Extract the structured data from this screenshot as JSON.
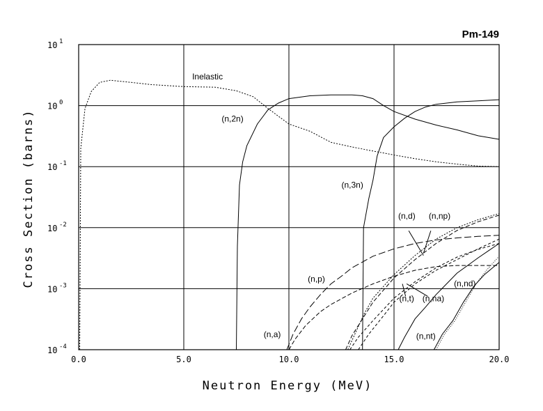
{
  "chart_data": {
    "type": "line",
    "title": "Pm-149",
    "xlabel": "Neutron Energy (MeV)",
    "ylabel": "Cross Section (barns)",
    "xlim": [
      0,
      20
    ],
    "ylim": [
      0.0001,
      10
    ],
    "yscale": "log",
    "grid": true,
    "x_ticks": [
      "0.0",
      "5.0",
      "10.0",
      "15.0",
      "20.0"
    ],
    "y_ticks": [
      {
        "base": "10",
        "exp": "-4",
        "value": 0.0001
      },
      {
        "base": "10",
        "exp": "-3",
        "value": 0.001
      },
      {
        "base": "10",
        "exp": "-2",
        "value": 0.01
      },
      {
        "base": "10",
        "exp": "-1",
        "value": 0.1
      },
      {
        "base": "10",
        "exp": "0",
        "value": 1
      },
      {
        "base": "10",
        "exp": "1",
        "value": 10
      }
    ],
    "series": [
      {
        "name": "Inelastic",
        "dash": "2,2",
        "label_at": [
          5.4,
          2.7
        ],
        "points": [
          [
            0.05,
            0.0001
          ],
          [
            0.1,
            0.2
          ],
          [
            0.3,
            0.9
          ],
          [
            0.6,
            1.7
          ],
          [
            1.0,
            2.4
          ],
          [
            1.5,
            2.6
          ],
          [
            2.5,
            2.4
          ],
          [
            3.5,
            2.2
          ],
          [
            5.0,
            2.05
          ],
          [
            6.5,
            2.0
          ],
          [
            7.5,
            1.75
          ],
          [
            8.3,
            1.4
          ],
          [
            9.0,
            0.9
          ],
          [
            10.0,
            0.5
          ],
          [
            11.0,
            0.38
          ],
          [
            12.0,
            0.25
          ],
          [
            13.0,
            0.21
          ],
          [
            14.0,
            0.18
          ],
          [
            15.0,
            0.155
          ],
          [
            16.0,
            0.135
          ],
          [
            17.0,
            0.12
          ],
          [
            18.0,
            0.11
          ],
          [
            19.0,
            0.102
          ],
          [
            20.0,
            0.1
          ]
        ]
      },
      {
        "name": "(n,2n)",
        "dash": "",
        "label_at": [
          6.8,
          0.55
        ],
        "points": [
          [
            7.5,
            0.0001
          ],
          [
            7.55,
            0.005
          ],
          [
            7.65,
            0.05
          ],
          [
            7.8,
            0.12
          ],
          [
            8.0,
            0.22
          ],
          [
            8.5,
            0.5
          ],
          [
            9.0,
            0.85
          ],
          [
            9.5,
            1.1
          ],
          [
            10.0,
            1.3
          ],
          [
            11.0,
            1.45
          ],
          [
            12.0,
            1.5
          ],
          [
            13.0,
            1.5
          ],
          [
            13.5,
            1.45
          ],
          [
            14.0,
            1.3
          ],
          [
            14.5,
            1.0
          ],
          [
            15.0,
            0.8
          ],
          [
            16.0,
            0.6
          ],
          [
            17.0,
            0.48
          ],
          [
            18.0,
            0.4
          ],
          [
            19.0,
            0.32
          ],
          [
            20.0,
            0.28
          ]
        ]
      },
      {
        "name": "(n,3n)",
        "dash": "",
        "label_at": [
          12.5,
          0.045
        ],
        "points": [
          [
            13.5,
            0.0001
          ],
          [
            13.55,
            0.01
          ],
          [
            13.8,
            0.03
          ],
          [
            14.0,
            0.06
          ],
          [
            14.2,
            0.15
          ],
          [
            14.5,
            0.3
          ],
          [
            15.0,
            0.45
          ],
          [
            15.5,
            0.62
          ],
          [
            16.0,
            0.8
          ],
          [
            16.5,
            0.95
          ],
          [
            17.0,
            1.05
          ],
          [
            18.0,
            1.15
          ],
          [
            19.0,
            1.2
          ],
          [
            20.0,
            1.25
          ]
        ]
      },
      {
        "name": "(n,p)",
        "dash": "10,4",
        "label_at": [
          10.9,
          0.0013
        ],
        "points": [
          [
            9.9,
            0.0001
          ],
          [
            10.2,
            0.00018
          ],
          [
            10.6,
            0.00032
          ],
          [
            11.0,
            0.0005
          ],
          [
            11.5,
            0.0008
          ],
          [
            12.0,
            0.0012
          ],
          [
            12.5,
            0.0016
          ],
          [
            13.0,
            0.0022
          ],
          [
            14.0,
            0.0034
          ],
          [
            15.0,
            0.0045
          ],
          [
            16.0,
            0.0055
          ],
          [
            17.0,
            0.0063
          ],
          [
            18.0,
            0.0068
          ],
          [
            19.0,
            0.0072
          ],
          [
            20.0,
            0.0075
          ]
        ]
      },
      {
        "name": "(n,a)",
        "dash": "6,3",
        "label_at": [
          8.8,
          0.00016
        ],
        "points": [
          [
            10.0,
            0.0001
          ],
          [
            10.3,
            0.00015
          ],
          [
            10.8,
            0.00025
          ],
          [
            11.5,
            0.00042
          ],
          [
            12.0,
            0.00055
          ],
          [
            13.0,
            0.00085
          ],
          [
            14.0,
            0.0012
          ],
          [
            15.0,
            0.0016
          ],
          [
            16.0,
            0.002
          ],
          [
            17.0,
            0.0023
          ],
          [
            18.0,
            0.0024
          ],
          [
            19.0,
            0.0024
          ],
          [
            20.0,
            0.0024
          ]
        ]
      },
      {
        "name": "(n,d)",
        "dash": "6,3",
        "label_at": [
          15.2,
          0.014
        ],
        "points": [
          [
            12.7,
            0.0001
          ],
          [
            13.0,
            0.00017
          ],
          [
            13.5,
            0.00032
          ],
          [
            14.0,
            0.0006
          ],
          [
            15.0,
            0.0015
          ],
          [
            16.0,
            0.003
          ],
          [
            17.0,
            0.0055
          ],
          [
            18.0,
            0.009
          ],
          [
            19.0,
            0.0125
          ],
          [
            20.0,
            0.016
          ]
        ]
      },
      {
        "name": "(n,np)",
        "dash": "2,2",
        "label_at": [
          16.65,
          0.014
        ],
        "points": [
          [
            12.8,
            0.0001
          ],
          [
            13.2,
            0.0002
          ],
          [
            13.6,
            0.0004
          ],
          [
            14.0,
            0.0007
          ],
          [
            15.0,
            0.0017
          ],
          [
            16.0,
            0.0035
          ],
          [
            17.0,
            0.0065
          ],
          [
            18.0,
            0.01
          ],
          [
            19.0,
            0.0135
          ],
          [
            20.0,
            0.017
          ]
        ]
      },
      {
        "name": "(n,t)",
        "dash": "4,3",
        "label_at": [
          15.25,
          0.00062
        ],
        "points": [
          [
            12.9,
            0.0001
          ],
          [
            13.3,
            0.00016
          ],
          [
            14.0,
            0.0003
          ],
          [
            15.0,
            0.0007
          ],
          [
            16.0,
            0.0013
          ],
          [
            17.0,
            0.0022
          ],
          [
            18.0,
            0.0033
          ],
          [
            19.0,
            0.0044
          ],
          [
            20.0,
            0.0055
          ]
        ]
      },
      {
        "name": "(n,na)",
        "dash": "4,3",
        "label_at": [
          16.35,
          0.00062
        ],
        "points": [
          [
            13.3,
            0.0001
          ],
          [
            13.8,
            0.00018
          ],
          [
            14.5,
            0.00036
          ],
          [
            15.0,
            0.0006
          ],
          [
            16.0,
            0.0012
          ],
          [
            17.0,
            0.002
          ],
          [
            18.0,
            0.003
          ],
          [
            19.0,
            0.0045
          ],
          [
            20.0,
            0.0065
          ]
        ]
      },
      {
        "name": "(n,nd)",
        "dash": "",
        "label_at": [
          17.85,
          0.0011
        ],
        "points": [
          [
            15.2,
            0.0001
          ],
          [
            15.5,
            0.00016
          ],
          [
            16.0,
            0.00032
          ],
          [
            16.5,
            0.0005
          ],
          [
            17.0,
            0.0008
          ],
          [
            17.5,
            0.0012
          ],
          [
            18.0,
            0.0018
          ],
          [
            18.5,
            0.0024
          ],
          [
            19.0,
            0.0032
          ],
          [
            19.5,
            0.0042
          ],
          [
            20.0,
            0.0055
          ]
        ]
      },
      {
        "name": "(n,nt)",
        "dash": "",
        "label_at": [
          16.05,
          0.00015
        ],
        "points": [
          [
            16.9,
            0.0001
          ],
          [
            17.3,
            0.00018
          ],
          [
            17.8,
            0.0003
          ],
          [
            18.3,
            0.0006
          ],
          [
            18.8,
            0.0011
          ],
          [
            19.3,
            0.0017
          ],
          [
            20.0,
            0.0027
          ]
        ]
      },
      {
        "name": "(n,nt) dotted",
        "dash": "1,2",
        "label_at": null,
        "points": [
          [
            17.0,
            0.0001
          ],
          [
            17.4,
            0.00018
          ],
          [
            17.9,
            0.0003
          ],
          [
            18.4,
            0.0006
          ],
          [
            18.9,
            0.0012
          ],
          [
            19.4,
            0.002
          ],
          [
            20.0,
            0.0034
          ]
        ]
      }
    ],
    "annotations": [
      {
        "series": "(n,d)",
        "from": [
          15.7,
          0.0089
        ],
        "to": [
          16.4,
          0.0035
        ]
      },
      {
        "series": "(n,np)",
        "from": [
          16.75,
          0.0089
        ],
        "to": [
          16.4,
          0.0038
        ]
      },
      {
        "series": "(n,t)",
        "from": [
          15.55,
          0.00075
        ],
        "to": [
          15.4,
          0.0012
        ]
      },
      {
        "series": "(n,na)",
        "from": [
          16.6,
          0.00075
        ],
        "to": [
          15.6,
          0.0012
        ]
      }
    ]
  }
}
